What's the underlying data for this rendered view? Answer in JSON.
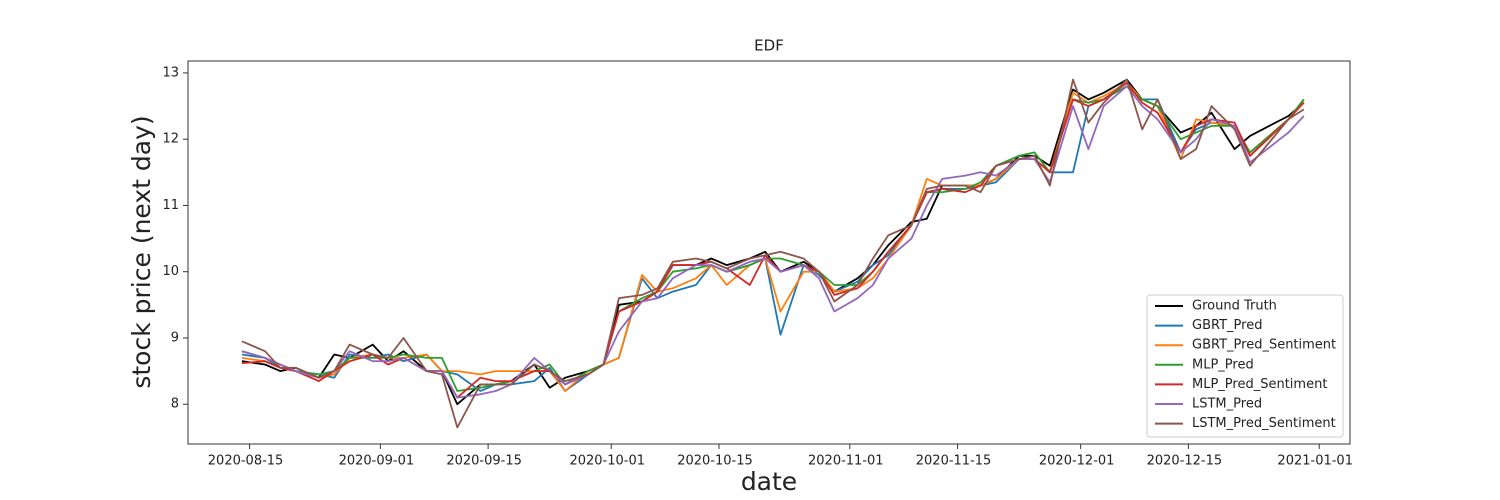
{
  "chart_data": {
    "type": "line",
    "title": "EDF",
    "xlabel": "date",
    "ylabel": "stock price (next day)",
    "x": [
      "2020-08-14",
      "2020-08-17",
      "2020-08-19",
      "2020-08-21",
      "2020-08-24",
      "2020-08-26",
      "2020-08-28",
      "2020-08-31",
      "2020-09-02",
      "2020-09-04",
      "2020-09-07",
      "2020-09-09",
      "2020-09-11",
      "2020-09-14",
      "2020-09-16",
      "2020-09-18",
      "2020-09-21",
      "2020-09-23",
      "2020-09-25",
      "2020-09-28",
      "2020-09-30",
      "2020-10-02",
      "2020-10-05",
      "2020-10-07",
      "2020-10-09",
      "2020-10-12",
      "2020-10-14",
      "2020-10-16",
      "2020-10-19",
      "2020-10-21",
      "2020-10-23",
      "2020-10-26",
      "2020-10-28",
      "2020-10-30",
      "2020-11-02",
      "2020-11-04",
      "2020-11-06",
      "2020-11-09",
      "2020-11-11",
      "2020-11-13",
      "2020-11-16",
      "2020-11-18",
      "2020-11-20",
      "2020-11-23",
      "2020-11-25",
      "2020-11-27",
      "2020-11-30",
      "2020-12-02",
      "2020-12-04",
      "2020-12-07",
      "2020-12-09",
      "2020-12-11",
      "2020-12-14",
      "2020-12-16",
      "2020-12-18",
      "2020-12-21",
      "2020-12-23",
      "2020-12-28",
      "2020-12-30"
    ],
    "series": [
      {
        "name": "Ground Truth",
        "color": "#000000",
        "values": [
          8.65,
          8.6,
          8.5,
          8.55,
          8.4,
          8.75,
          8.7,
          8.9,
          8.65,
          8.8,
          8.5,
          8.5,
          8.0,
          8.3,
          8.3,
          8.35,
          8.6,
          8.25,
          8.4,
          8.5,
          8.6,
          9.5,
          9.55,
          9.7,
          10.1,
          10.1,
          10.2,
          10.1,
          10.2,
          10.3,
          10.0,
          10.15,
          10.0,
          9.7,
          9.9,
          10.1,
          10.4,
          10.75,
          10.8,
          11.3,
          11.3,
          11.3,
          11.4,
          11.75,
          11.75,
          11.6,
          12.75,
          12.6,
          12.7,
          12.9,
          12.6,
          12.5,
          12.1,
          12.2,
          12.4,
          11.85,
          12.05,
          12.35,
          12.55
        ]
      },
      {
        "name": "GBRT_Pred",
        "color": "#1f77b4",
        "values": [
          8.75,
          8.7,
          8.55,
          8.5,
          8.45,
          8.4,
          8.75,
          8.7,
          8.75,
          8.65,
          8.75,
          8.5,
          8.45,
          8.2,
          8.3,
          8.3,
          8.35,
          8.55,
          8.2,
          8.45,
          8.6,
          8.7,
          9.9,
          9.6,
          9.7,
          9.8,
          10.1,
          10.0,
          10.1,
          10.2,
          9.05,
          10.1,
          9.95,
          9.7,
          9.85,
          10.1,
          10.25,
          10.7,
          11.2,
          11.25,
          11.25,
          11.3,
          11.35,
          11.7,
          11.7,
          11.5,
          11.5,
          12.5,
          12.6,
          12.85,
          12.6,
          12.6,
          11.8,
          12.15,
          12.25,
          12.2,
          11.75,
          12.3,
          12.6
        ]
      },
      {
        "name": "GBRT_Pred_Sentiment",
        "color": "#ff7f0e",
        "values": [
          8.7,
          8.65,
          8.55,
          8.5,
          8.4,
          8.45,
          8.7,
          8.75,
          8.7,
          8.7,
          8.75,
          8.5,
          8.5,
          8.45,
          8.5,
          8.5,
          8.5,
          8.5,
          8.2,
          8.5,
          8.6,
          8.7,
          9.95,
          9.7,
          9.75,
          9.9,
          10.1,
          9.8,
          10.1,
          10.2,
          9.4,
          10.0,
          10.0,
          9.7,
          9.75,
          9.9,
          10.2,
          10.7,
          11.4,
          11.3,
          11.3,
          11.3,
          11.4,
          11.7,
          11.7,
          11.5,
          12.7,
          12.55,
          12.65,
          12.85,
          12.6,
          12.5,
          11.7,
          12.3,
          12.25,
          12.2,
          11.8,
          12.3,
          12.6
        ]
      },
      {
        "name": "MLP_Pred",
        "color": "#2ca02c",
        "values": [
          8.8,
          8.7,
          8.6,
          8.5,
          8.45,
          8.5,
          8.7,
          8.7,
          8.7,
          8.75,
          8.7,
          8.7,
          8.2,
          8.25,
          8.3,
          8.35,
          8.5,
          8.6,
          8.3,
          8.5,
          8.6,
          9.4,
          9.6,
          9.7,
          10.0,
          10.05,
          10.1,
          10.0,
          10.1,
          10.2,
          10.2,
          10.1,
          10.0,
          9.8,
          9.8,
          10.0,
          10.3,
          10.7,
          11.2,
          11.2,
          11.25,
          11.35,
          11.6,
          11.75,
          11.8,
          11.5,
          12.6,
          12.55,
          12.6,
          12.8,
          12.6,
          12.5,
          12.0,
          12.1,
          12.2,
          12.2,
          11.8,
          12.3,
          12.6
        ]
      },
      {
        "name": "MLP_Pred_Sentiment",
        "color": "#d62728",
        "values": [
          8.62,
          8.65,
          8.55,
          8.5,
          8.35,
          8.5,
          8.65,
          8.75,
          8.6,
          8.7,
          8.5,
          8.5,
          8.1,
          8.4,
          8.35,
          8.35,
          8.5,
          8.5,
          8.3,
          8.45,
          8.6,
          9.4,
          9.55,
          9.7,
          10.1,
          10.1,
          10.15,
          10.05,
          9.8,
          10.25,
          10.0,
          10.1,
          10.0,
          9.65,
          9.75,
          10.0,
          10.3,
          10.7,
          11.2,
          11.25,
          11.2,
          11.3,
          11.6,
          11.7,
          11.7,
          11.5,
          12.6,
          12.5,
          12.6,
          12.85,
          12.55,
          12.4,
          11.8,
          12.2,
          12.3,
          12.25,
          11.75,
          12.3,
          12.55
        ]
      },
      {
        "name": "LSTM_Pred",
        "color": "#9467bd",
        "values": [
          8.8,
          8.7,
          8.6,
          8.5,
          8.4,
          8.5,
          8.8,
          8.65,
          8.65,
          8.7,
          8.5,
          8.5,
          8.1,
          8.15,
          8.2,
          8.3,
          8.7,
          8.5,
          8.3,
          8.45,
          8.6,
          9.1,
          9.55,
          9.6,
          9.9,
          10.1,
          10.1,
          10.0,
          10.15,
          10.2,
          10.0,
          10.1,
          9.9,
          9.4,
          9.6,
          9.8,
          10.2,
          10.5,
          11.0,
          11.4,
          11.45,
          11.5,
          11.45,
          11.7,
          11.7,
          11.35,
          12.5,
          11.85,
          12.5,
          12.8,
          12.5,
          12.3,
          11.8,
          12.0,
          12.3,
          12.2,
          11.65,
          12.1,
          12.35
        ]
      },
      {
        "name": "LSTM_Pred_Sentiment",
        "color": "#8c564b",
        "values": [
          8.95,
          8.8,
          8.55,
          8.55,
          8.4,
          8.5,
          8.9,
          8.75,
          8.7,
          9.0,
          8.5,
          8.45,
          7.65,
          8.3,
          8.3,
          8.3,
          8.6,
          8.5,
          8.35,
          8.45,
          8.6,
          9.6,
          9.65,
          9.75,
          10.15,
          10.2,
          10.15,
          10.05,
          10.2,
          10.25,
          10.3,
          10.2,
          10.0,
          9.55,
          9.8,
          10.2,
          10.55,
          10.7,
          11.25,
          11.3,
          11.3,
          11.2,
          11.6,
          11.7,
          11.75,
          11.3,
          12.9,
          12.25,
          12.55,
          12.9,
          12.15,
          12.6,
          11.7,
          11.85,
          12.5,
          12.15,
          11.6,
          12.3,
          12.45
        ]
      }
    ],
    "xlim": [
      "2020-08-07",
      "2021-01-05"
    ],
    "xticks": [
      "2020-08-15",
      "2020-09-01",
      "2020-09-15",
      "2020-10-01",
      "2020-10-15",
      "2020-11-01",
      "2020-11-15",
      "2020-12-01",
      "2020-12-15",
      "2021-01-01"
    ],
    "ylim": [
      7.4,
      13.18
    ],
    "yticks": [
      8,
      9,
      10,
      11,
      12,
      13
    ],
    "legend": "lower right",
    "grid": false
  }
}
